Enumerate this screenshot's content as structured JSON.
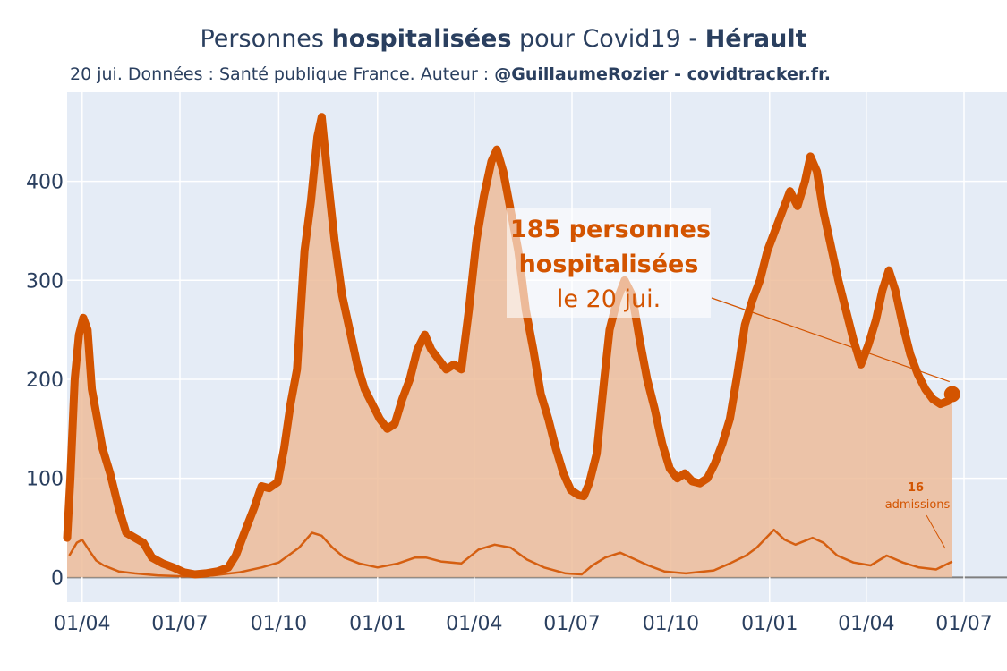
{
  "header": {
    "title_pre": "Personnes ",
    "title_bold": "hospitalisées",
    "title_mid": " pour Covid19 - ",
    "title_region": "Hérault",
    "subtitle_pre": "20 jui. Données : Santé publique France. Auteur : ",
    "subtitle_bold": "@GuillaumeRozier - covidtracker.fr."
  },
  "annotations": {
    "main_line1": "185 personnes",
    "main_line2": "hospitalisées",
    "main_line3": "le 20 jui.",
    "small_value": "16",
    "small_label": "admissions"
  },
  "colors": {
    "plot_bg": "#e5ecf6",
    "hosp_line": "#d35400",
    "hosp_fill": "#edbc9a",
    "admissions": "#d35400",
    "axis_text": "#2a3f5f"
  },
  "chart_data": {
    "type": "area",
    "title": "",
    "xlabel": "",
    "ylabel": "",
    "ylim": [
      -25,
      490
    ],
    "grid": true,
    "x_ticks": [
      "01/04",
      "01/07",
      "01/10",
      "01/01",
      "01/04",
      "01/07",
      "01/10",
      "01/01",
      "01/04",
      "01/07"
    ],
    "y_ticks": [
      0,
      100,
      200,
      300,
      400
    ],
    "series": [
      {
        "name": "",
        "style": "thick-line-with-fill",
        "points": [
          [
            "2020-03-18",
            40
          ],
          [
            "2020-03-21",
            100
          ],
          [
            "2020-03-25",
            200
          ],
          [
            "2020-03-29",
            245
          ],
          [
            "2020-04-02",
            262
          ],
          [
            "2020-04-06",
            250
          ],
          [
            "2020-04-10",
            190
          ],
          [
            "2020-04-15",
            160
          ],
          [
            "2020-04-20",
            130
          ],
          [
            "2020-04-27",
            105
          ],
          [
            "2020-05-05",
            70
          ],
          [
            "2020-05-12",
            45
          ],
          [
            "2020-05-20",
            40
          ],
          [
            "2020-05-28",
            35
          ],
          [
            "2020-06-05",
            20
          ],
          [
            "2020-06-15",
            14
          ],
          [
            "2020-06-25",
            10
          ],
          [
            "2020-07-05",
            5
          ],
          [
            "2020-07-15",
            3
          ],
          [
            "2020-07-25",
            4
          ],
          [
            "2020-08-05",
            6
          ],
          [
            "2020-08-15",
            10
          ],
          [
            "2020-08-22",
            22
          ],
          [
            "2020-08-30",
            45
          ],
          [
            "2020-09-08",
            70
          ],
          [
            "2020-09-15",
            92
          ],
          [
            "2020-09-22",
            90
          ],
          [
            "2020-09-30",
            96
          ],
          [
            "2020-10-06",
            130
          ],
          [
            "2020-10-12",
            175
          ],
          [
            "2020-10-18",
            210
          ],
          [
            "2020-10-25",
            330
          ],
          [
            "2020-10-31",
            380
          ],
          [
            "2020-11-06",
            445
          ],
          [
            "2020-11-10",
            465
          ],
          [
            "2020-11-16",
            400
          ],
          [
            "2020-11-22",
            340
          ],
          [
            "2020-11-29",
            285
          ],
          [
            "2020-12-06",
            250
          ],
          [
            "2020-12-13",
            215
          ],
          [
            "2020-12-20",
            190
          ],
          [
            "2020-12-27",
            175
          ],
          [
            "2021-01-03",
            160
          ],
          [
            "2021-01-10",
            150
          ],
          [
            "2021-01-17",
            155
          ],
          [
            "2021-01-24",
            180
          ],
          [
            "2021-01-31",
            200
          ],
          [
            "2021-02-07",
            230
          ],
          [
            "2021-02-14",
            245
          ],
          [
            "2021-02-20",
            230
          ],
          [
            "2021-02-27",
            220
          ],
          [
            "2021-03-06",
            210
          ],
          [
            "2021-03-13",
            215
          ],
          [
            "2021-03-20",
            210
          ],
          [
            "2021-03-27",
            270
          ],
          [
            "2021-04-03",
            340
          ],
          [
            "2021-04-10",
            385
          ],
          [
            "2021-04-17",
            420
          ],
          [
            "2021-04-22",
            432
          ],
          [
            "2021-04-28",
            410
          ],
          [
            "2021-05-05",
            370
          ],
          [
            "2021-05-12",
            330
          ],
          [
            "2021-05-19",
            270
          ],
          [
            "2021-05-26",
            230
          ],
          [
            "2021-06-02",
            185
          ],
          [
            "2021-06-09",
            160
          ],
          [
            "2021-06-16",
            130
          ],
          [
            "2021-06-23",
            105
          ],
          [
            "2021-06-30",
            88
          ],
          [
            "2021-07-07",
            83
          ],
          [
            "2021-07-12",
            82
          ],
          [
            "2021-07-17",
            95
          ],
          [
            "2021-07-24",
            125
          ],
          [
            "2021-07-31",
            200
          ],
          [
            "2021-08-05",
            250
          ],
          [
            "2021-08-12",
            280
          ],
          [
            "2021-08-19",
            300
          ],
          [
            "2021-08-26",
            285
          ],
          [
            "2021-09-02",
            240
          ],
          [
            "2021-09-09",
            200
          ],
          [
            "2021-09-16",
            170
          ],
          [
            "2021-09-23",
            135
          ],
          [
            "2021-09-30",
            110
          ],
          [
            "2021-10-07",
            100
          ],
          [
            "2021-10-14",
            105
          ],
          [
            "2021-10-21",
            97
          ],
          [
            "2021-10-28",
            95
          ],
          [
            "2021-11-04",
            100
          ],
          [
            "2021-11-11",
            115
          ],
          [
            "2021-11-18",
            135
          ],
          [
            "2021-11-25",
            160
          ],
          [
            "2021-12-02",
            205
          ],
          [
            "2021-12-09",
            255
          ],
          [
            "2021-12-16",
            280
          ],
          [
            "2021-12-23",
            300
          ],
          [
            "2021-12-30",
            330
          ],
          [
            "2022-01-06",
            350
          ],
          [
            "2022-01-13",
            370
          ],
          [
            "2022-01-20",
            390
          ],
          [
            "2022-01-27",
            375
          ],
          [
            "2022-02-03",
            400
          ],
          [
            "2022-02-08",
            425
          ],
          [
            "2022-02-14",
            410
          ],
          [
            "2022-02-20",
            370
          ],
          [
            "2022-02-27",
            335
          ],
          [
            "2022-03-06",
            300
          ],
          [
            "2022-03-13",
            270
          ],
          [
            "2022-03-20",
            240
          ],
          [
            "2022-03-27",
            215
          ],
          [
            "2022-04-03",
            235
          ],
          [
            "2022-04-10",
            260
          ],
          [
            "2022-04-16",
            290
          ],
          [
            "2022-04-22",
            310
          ],
          [
            "2022-04-28",
            290
          ],
          [
            "2022-05-05",
            255
          ],
          [
            "2022-05-12",
            225
          ],
          [
            "2022-05-19",
            205
          ],
          [
            "2022-05-26",
            190
          ],
          [
            "2022-06-02",
            180
          ],
          [
            "2022-06-09",
            175
          ],
          [
            "2022-06-16",
            178
          ],
          [
            "2022-06-20",
            185
          ]
        ]
      },
      {
        "name": "admissions",
        "style": "thin-line",
        "points": [
          [
            "2020-03-20",
            22
          ],
          [
            "2020-03-27",
            35
          ],
          [
            "2020-04-01",
            38
          ],
          [
            "2020-04-07",
            28
          ],
          [
            "2020-04-14",
            17
          ],
          [
            "2020-04-21",
            12
          ],
          [
            "2020-05-05",
            6
          ],
          [
            "2020-05-20",
            4
          ],
          [
            "2020-06-10",
            2
          ],
          [
            "2020-07-05",
            1
          ],
          [
            "2020-08-01",
            2
          ],
          [
            "2020-08-25",
            5
          ],
          [
            "2020-09-15",
            10
          ],
          [
            "2020-10-01",
            15
          ],
          [
            "2020-10-20",
            30
          ],
          [
            "2020-11-01",
            45
          ],
          [
            "2020-11-10",
            42
          ],
          [
            "2020-11-20",
            30
          ],
          [
            "2020-12-01",
            20
          ],
          [
            "2020-12-15",
            14
          ],
          [
            "2021-01-01",
            10
          ],
          [
            "2021-01-20",
            14
          ],
          [
            "2021-02-05",
            20
          ],
          [
            "2021-02-15",
            20
          ],
          [
            "2021-03-01",
            16
          ],
          [
            "2021-03-20",
            14
          ],
          [
            "2021-04-05",
            28
          ],
          [
            "2021-04-20",
            33
          ],
          [
            "2021-05-05",
            30
          ],
          [
            "2021-05-20",
            18
          ],
          [
            "2021-06-05",
            10
          ],
          [
            "2021-06-25",
            4
          ],
          [
            "2021-07-10",
            3
          ],
          [
            "2021-07-20",
            12
          ],
          [
            "2021-08-01",
            20
          ],
          [
            "2021-08-15",
            25
          ],
          [
            "2021-08-25",
            20
          ],
          [
            "2021-09-10",
            12
          ],
          [
            "2021-09-25",
            6
          ],
          [
            "2021-10-15",
            4
          ],
          [
            "2021-11-10",
            7
          ],
          [
            "2021-11-25",
            14
          ],
          [
            "2021-12-10",
            22
          ],
          [
            "2021-12-20",
            30
          ],
          [
            "2022-01-05",
            48
          ],
          [
            "2022-01-15",
            38
          ],
          [
            "2022-01-25",
            33
          ],
          [
            "2022-02-10",
            40
          ],
          [
            "2022-02-20",
            35
          ],
          [
            "2022-03-05",
            22
          ],
          [
            "2022-03-20",
            15
          ],
          [
            "2022-04-05",
            12
          ],
          [
            "2022-04-20",
            22
          ],
          [
            "2022-05-05",
            15
          ],
          [
            "2022-05-20",
            10
          ],
          [
            "2022-06-05",
            8
          ],
          [
            "2022-06-20",
            16
          ]
        ]
      }
    ]
  }
}
